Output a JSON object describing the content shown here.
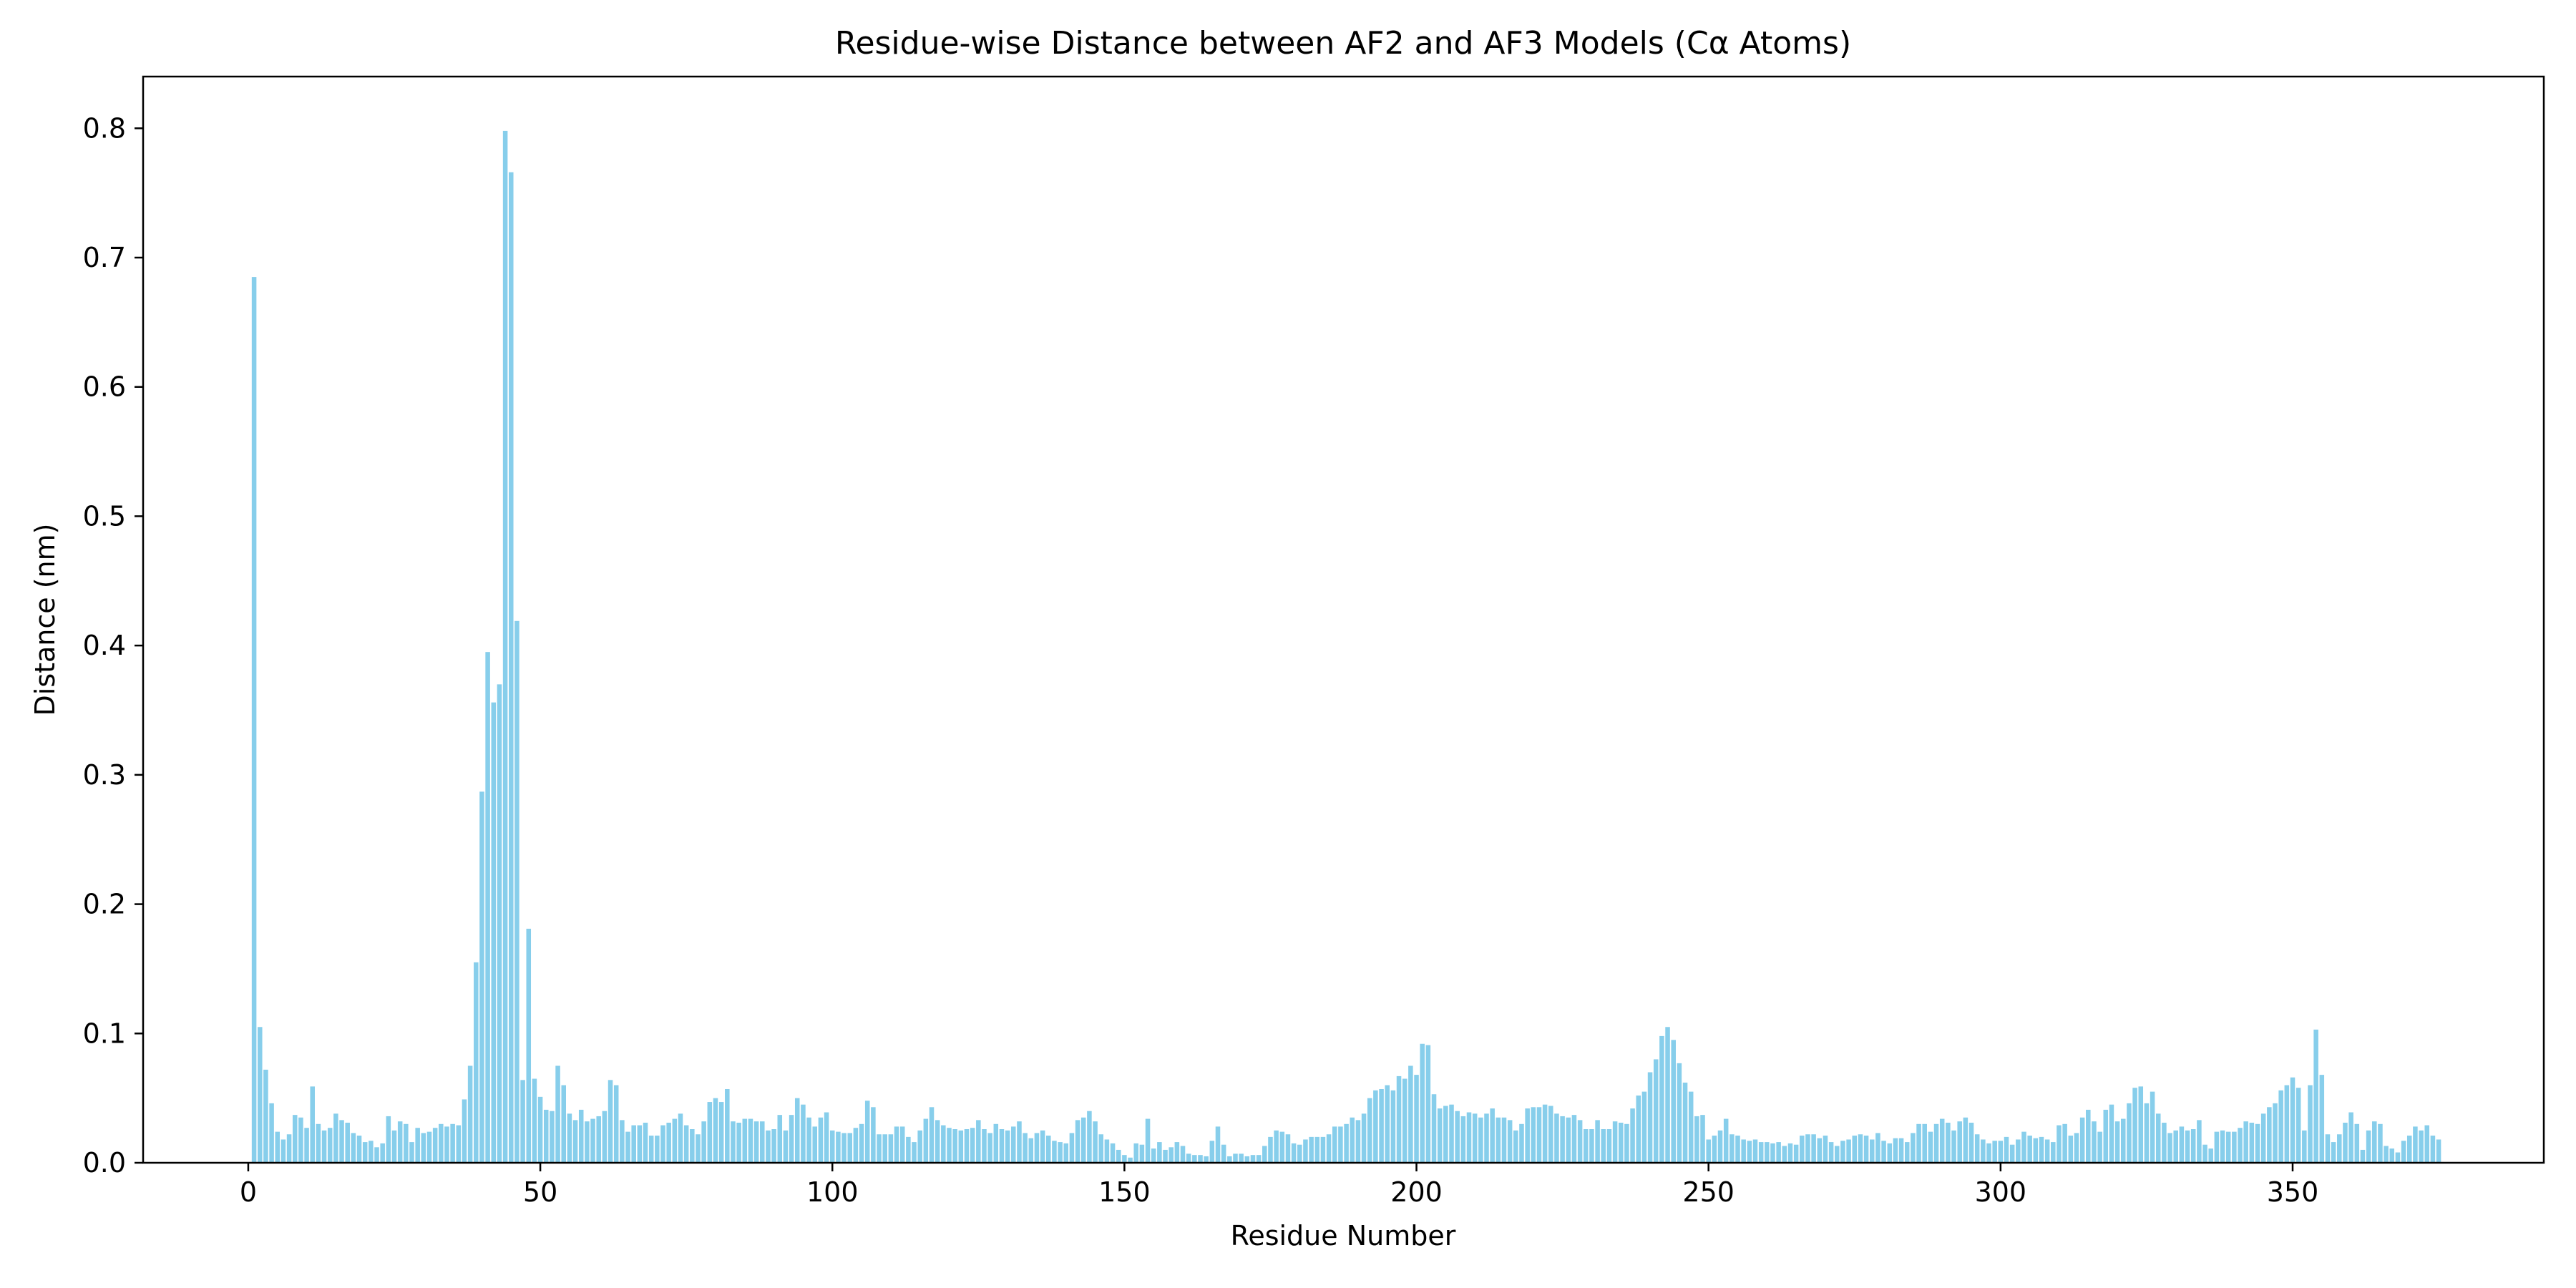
{
  "chart_data": {
    "type": "bar",
    "title": "Residue-wise Distance between AF2 and AF3 Models (Cα Atoms)",
    "xlabel": "Residue Number",
    "ylabel": "Distance (nm)",
    "xlim": [
      -18,
      393
    ],
    "ylim": [
      0,
      0.84
    ],
    "xticks": [
      0,
      50,
      100,
      150,
      200,
      250,
      300,
      350
    ],
    "yticks": [
      0.0,
      0.1,
      0.2,
      0.3,
      0.4,
      0.5,
      0.6,
      0.7,
      0.8
    ],
    "grid": false,
    "bar_color": "#87ceeb",
    "x_start": 1,
    "values": [
      0.685,
      0.105,
      0.072,
      0.046,
      0.024,
      0.018,
      0.022,
      0.037,
      0.035,
      0.027,
      0.059,
      0.03,
      0.025,
      0.027,
      0.038,
      0.033,
      0.031,
      0.023,
      0.021,
      0.016,
      0.017,
      0.012,
      0.015,
      0.036,
      0.025,
      0.032,
      0.03,
      0.016,
      0.027,
      0.023,
      0.024,
      0.027,
      0.03,
      0.028,
      0.03,
      0.029,
      0.049,
      0.075,
      0.155,
      0.287,
      0.395,
      0.356,
      0.37,
      0.798,
      0.766,
      0.419,
      0.064,
      0.181,
      0.065,
      0.051,
      0.041,
      0.04,
      0.075,
      0.06,
      0.038,
      0.033,
      0.041,
      0.032,
      0.034,
      0.036,
      0.04,
      0.064,
      0.06,
      0.033,
      0.024,
      0.029,
      0.029,
      0.031,
      0.021,
      0.021,
      0.029,
      0.031,
      0.034,
      0.038,
      0.029,
      0.026,
      0.022,
      0.032,
      0.047,
      0.05,
      0.047,
      0.057,
      0.032,
      0.031,
      0.034,
      0.034,
      0.032,
      0.032,
      0.025,
      0.026,
      0.037,
      0.025,
      0.037,
      0.05,
      0.045,
      0.035,
      0.028,
      0.035,
      0.039,
      0.025,
      0.024,
      0.023,
      0.023,
      0.027,
      0.03,
      0.048,
      0.043,
      0.022,
      0.022,
      0.022,
      0.028,
      0.028,
      0.02,
      0.016,
      0.025,
      0.034,
      0.043,
      0.033,
      0.029,
      0.027,
      0.026,
      0.025,
      0.026,
      0.027,
      0.033,
      0.026,
      0.023,
      0.03,
      0.026,
      0.025,
      0.028,
      0.032,
      0.023,
      0.019,
      0.023,
      0.025,
      0.021,
      0.017,
      0.016,
      0.015,
      0.023,
      0.033,
      0.035,
      0.04,
      0.032,
      0.022,
      0.018,
      0.015,
      0.01,
      0.006,
      0.004,
      0.015,
      0.014,
      0.034,
      0.011,
      0.016,
      0.01,
      0.012,
      0.016,
      0.013,
      0.007,
      0.006,
      0.006,
      0.005,
      0.017,
      0.028,
      0.014,
      0.005,
      0.007,
      0.007,
      0.005,
      0.006,
      0.006,
      0.013,
      0.02,
      0.025,
      0.024,
      0.022,
      0.015,
      0.014,
      0.018,
      0.02,
      0.02,
      0.02,
      0.022,
      0.028,
      0.028,
      0.03,
      0.035,
      0.033,
      0.038,
      0.05,
      0.056,
      0.057,
      0.06,
      0.056,
      0.067,
      0.065,
      0.075,
      0.068,
      0.092,
      0.091,
      0.053,
      0.042,
      0.044,
      0.045,
      0.04,
      0.036,
      0.039,
      0.038,
      0.035,
      0.038,
      0.042,
      0.035,
      0.035,
      0.033,
      0.025,
      0.03,
      0.042,
      0.043,
      0.043,
      0.045,
      0.044,
      0.038,
      0.036,
      0.035,
      0.037,
      0.033,
      0.026,
      0.026,
      0.033,
      0.026,
      0.026,
      0.032,
      0.031,
      0.03,
      0.042,
      0.052,
      0.055,
      0.07,
      0.08,
      0.098,
      0.105,
      0.095,
      0.077,
      0.062,
      0.055,
      0.036,
      0.037,
      0.018,
      0.021,
      0.025,
      0.034,
      0.022,
      0.021,
      0.018,
      0.017,
      0.018,
      0.016,
      0.016,
      0.015,
      0.016,
      0.013,
      0.015,
      0.014,
      0.021,
      0.022,
      0.022,
      0.019,
      0.021,
      0.016,
      0.013,
      0.017,
      0.018,
      0.021,
      0.022,
      0.021,
      0.018,
      0.023,
      0.017,
      0.015,
      0.019,
      0.019,
      0.016,
      0.023,
      0.03,
      0.03,
      0.024,
      0.03,
      0.034,
      0.031,
      0.025,
      0.032,
      0.035,
      0.031,
      0.022,
      0.018,
      0.015,
      0.017,
      0.017,
      0.02,
      0.014,
      0.018,
      0.024,
      0.021,
      0.019,
      0.02,
      0.018,
      0.016,
      0.029,
      0.03,
      0.021,
      0.023,
      0.035,
      0.041,
      0.032,
      0.024,
      0.041,
      0.045,
      0.032,
      0.034,
      0.046,
      0.058,
      0.059,
      0.046,
      0.055,
      0.038,
      0.031,
      0.023,
      0.025,
      0.028,
      0.025,
      0.026,
      0.033,
      0.014,
      0.011,
      0.024,
      0.025,
      0.024,
      0.024,
      0.027,
      0.032,
      0.031,
      0.03,
      0.038,
      0.043,
      0.046,
      0.056,
      0.06,
      0.066,
      0.058,
      0.025,
      0.06,
      0.103,
      0.068,
      0.022,
      0.016,
      0.022,
      0.031,
      0.039,
      0.03,
      0.01,
      0.025,
      0.032,
      0.03,
      0.013,
      0.011,
      0.008,
      0.017,
      0.021,
      0.028,
      0.025,
      0.029,
      0.021,
      0.018
    ]
  }
}
